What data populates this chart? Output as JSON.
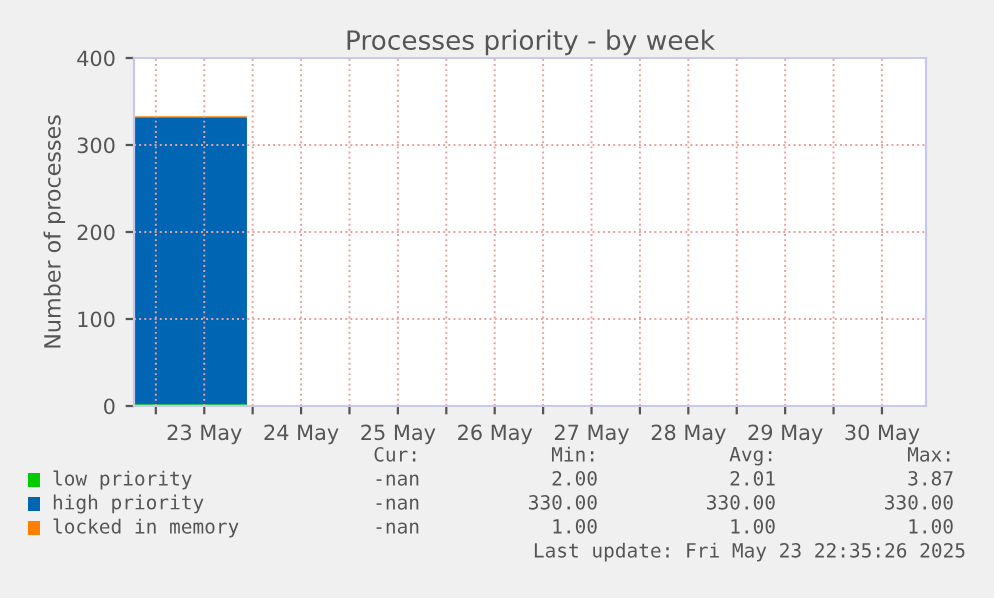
{
  "chart_data": {
    "type": "area",
    "stacked": true,
    "title": "Processes priority - by week",
    "ylabel": "Number of processes",
    "x": [
      "2025-05-22T18:35",
      "2025-05-23T22:35"
    ],
    "series": [
      {
        "name": "low priority",
        "color": "#00cc00",
        "values": [
          2,
          2
        ]
      },
      {
        "name": "high priority",
        "color": "#0066b3",
        "values": [
          330,
          330
        ]
      },
      {
        "name": "locked in memory",
        "color": "#ff8000",
        "values": [
          1,
          1
        ]
      }
    ],
    "xlim": [
      "2025-05-22T18:35",
      "2025-05-30T22:55"
    ],
    "xticks": [
      {
        "value": "2025-05-23T12:00",
        "label": "23 May"
      },
      {
        "value": "2025-05-24T12:00",
        "label": "24 May"
      },
      {
        "value": "2025-05-25T12:00",
        "label": "25 May"
      },
      {
        "value": "2025-05-26T12:00",
        "label": "26 May"
      },
      {
        "value": "2025-05-27T12:00",
        "label": "27 May"
      },
      {
        "value": "2025-05-28T12:00",
        "label": "28 May"
      },
      {
        "value": "2025-05-29T12:00",
        "label": "29 May"
      },
      {
        "value": "2025-05-30T12:00",
        "label": "30 May"
      },
      {
        "value": "2025-05-23T00:00",
        "label": null
      },
      {
        "value": "2025-05-24T00:00",
        "label": null
      },
      {
        "value": "2025-05-25T00:00",
        "label": null
      },
      {
        "value": "2025-05-26T00:00",
        "label": null
      },
      {
        "value": "2025-05-27T00:00",
        "label": null
      },
      {
        "value": "2025-05-28T00:00",
        "label": null
      },
      {
        "value": "2025-05-29T00:00",
        "label": null
      },
      {
        "value": "2025-05-30T00:00",
        "label": null
      }
    ],
    "ylim": [
      0,
      400
    ],
    "yticks": [
      0,
      100,
      200,
      300,
      400
    ],
    "grid": true,
    "legend": "bottom",
    "annotations": [
      "Cur:",
      "Min:",
      "Avg:",
      "Max:",
      "-nan",
      "2.00",
      "2.01",
      "3.87",
      "-nan",
      "330.00",
      "330.00",
      "330.00",
      "-nan",
      "1.00",
      "1.00",
      "1.00",
      "Last update: Fri May 23 22:35:26 2025"
    ]
  }
}
